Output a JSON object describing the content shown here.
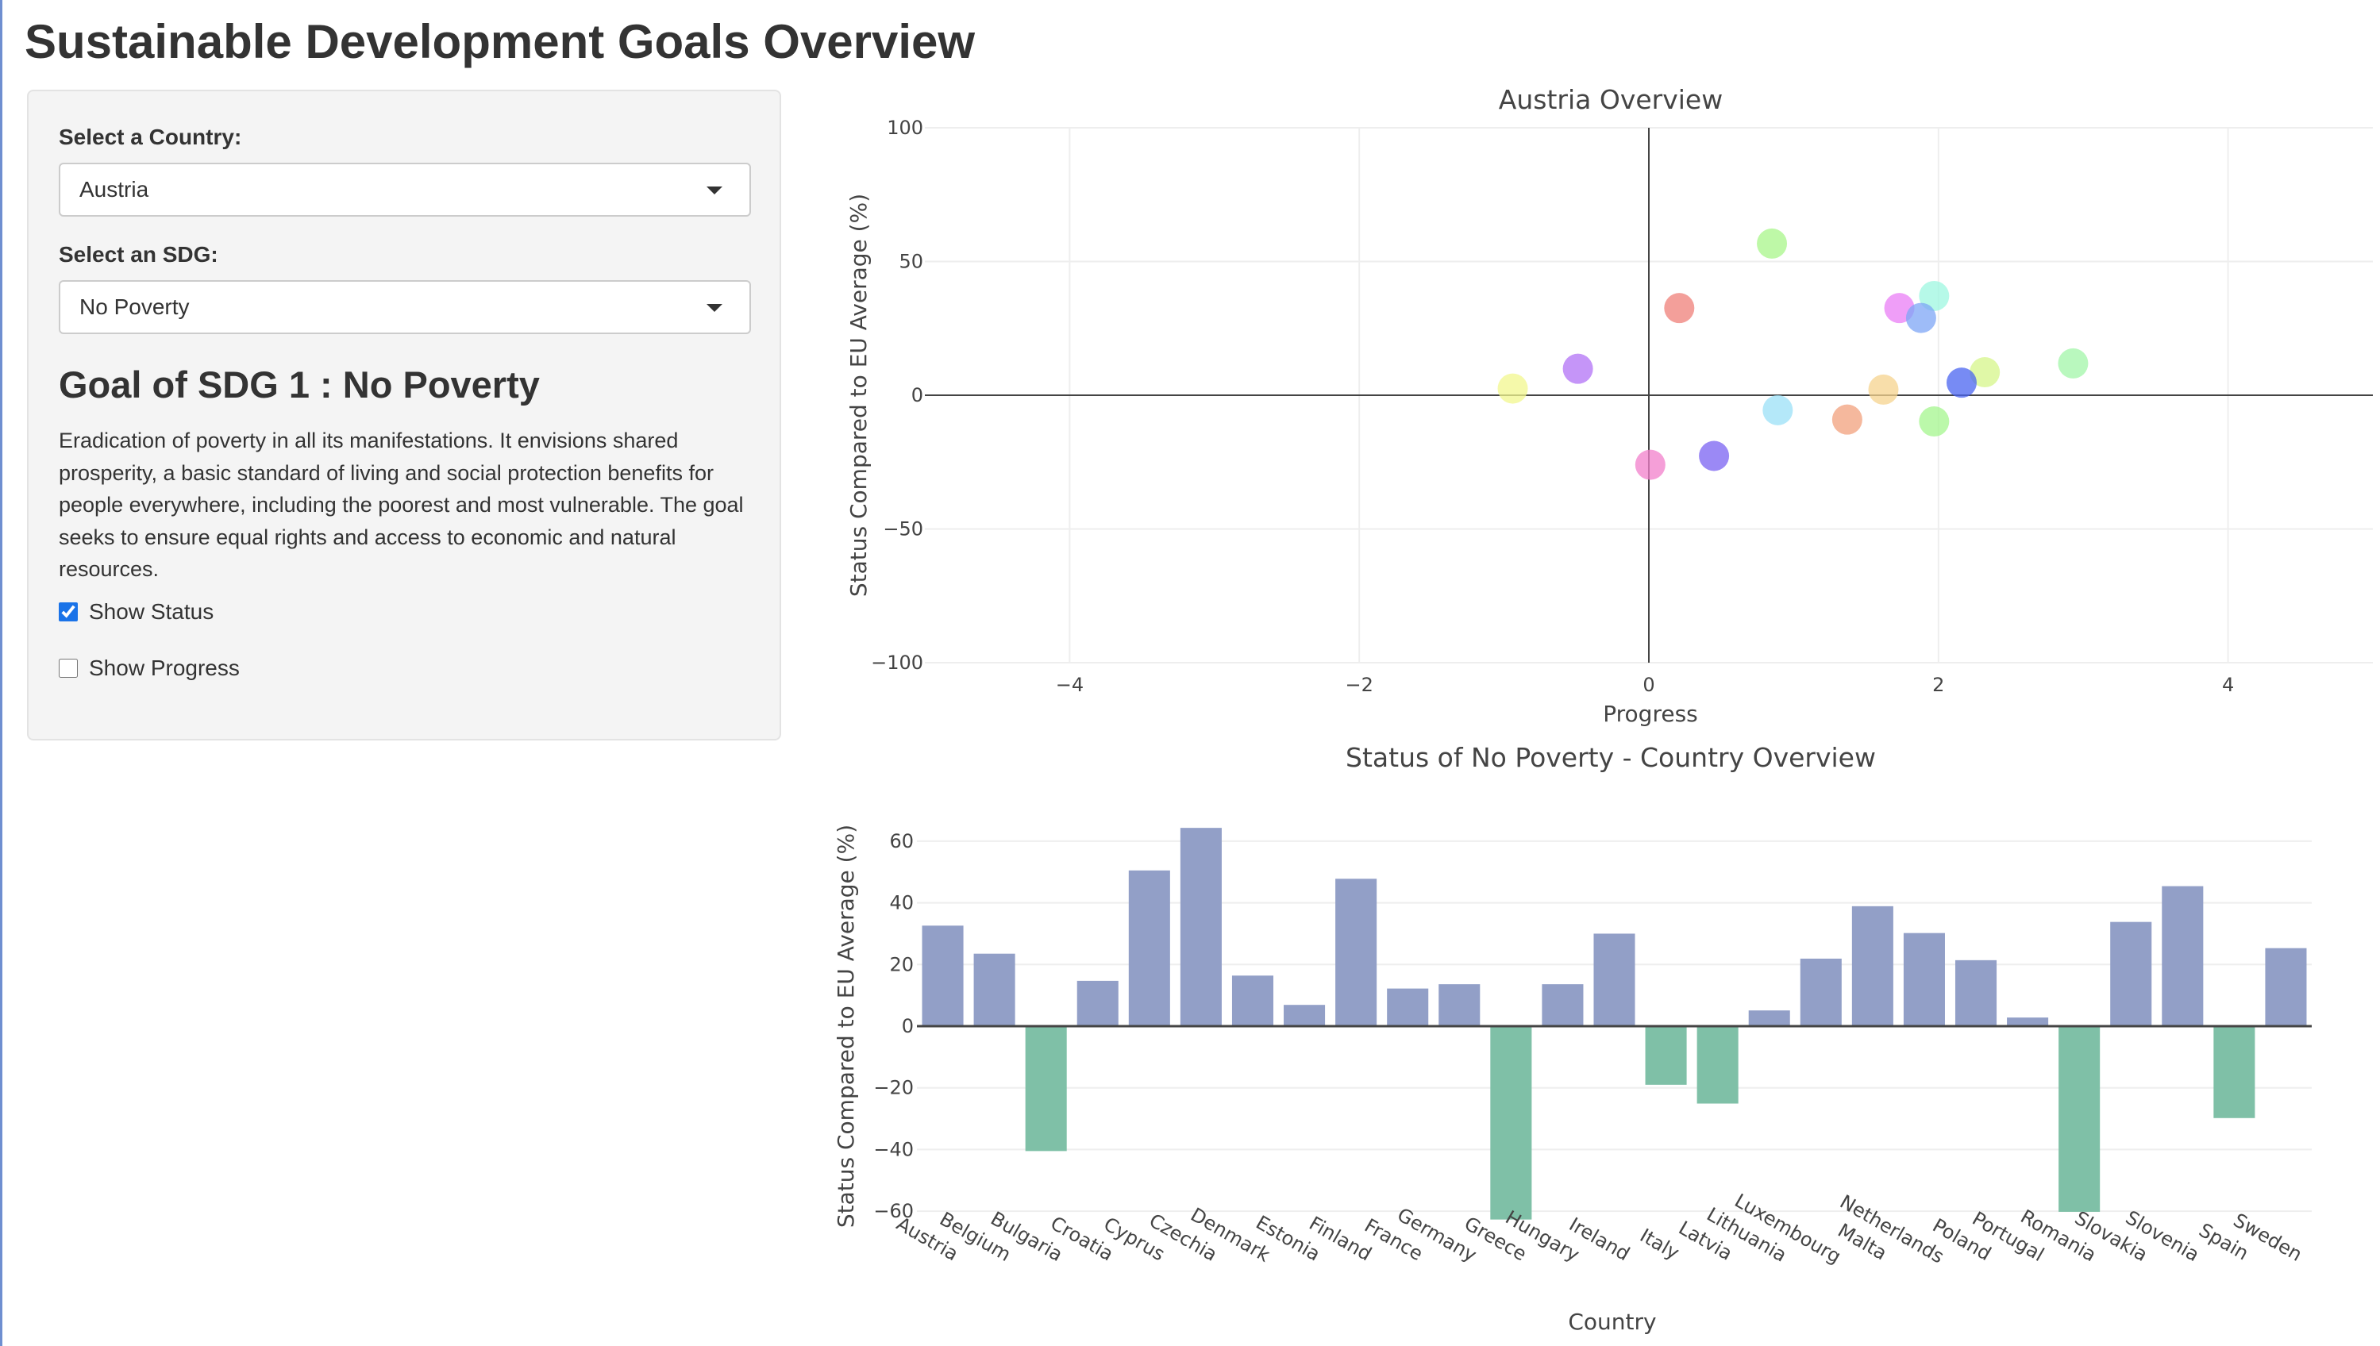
{
  "page_title": "Sustainable Development Goals Overview",
  "sidebar": {
    "country_label": "Select a Country:",
    "country_value": "Austria",
    "sdg_label": "Select an SDG:",
    "sdg_value": "No Poverty",
    "goal_heading": "Goal of SDG 1 : No Poverty",
    "goal_description": "Eradication of poverty in all its manifestations. It envisions shared prosperity, a basic standard of living and social protection benefits for people everywhere, including the poorest and most vulnerable. The goal seeks to ensure equal rights and access to economic and natural resources.",
    "show_status_label": "Show Status",
    "show_status_checked": true,
    "show_progress_label": "Show Progress",
    "show_progress_checked": false
  },
  "chart_data": [
    {
      "type": "scatter",
      "title": "Austria Overview",
      "xlabel": "Progress",
      "ylabel": "Status Compared to EU Average (%)",
      "xlim": [
        -5,
        5
      ],
      "ylim": [
        -100,
        100
      ],
      "xticks": [
        -4,
        -2,
        0,
        2,
        4
      ],
      "yticks": [
        -100,
        -50,
        0,
        50,
        100
      ],
      "grid": true,
      "points": [
        {
          "x": 0.85,
          "y": 56.7,
          "color": "#a8f58a"
        },
        {
          "x": 0.21,
          "y": 32.6,
          "color": "#ef7f78"
        },
        {
          "x": 1.73,
          "y": 32.6,
          "color": "#ea7ef5"
        },
        {
          "x": 1.97,
          "y": 37.1,
          "color": "#9ef7e0"
        },
        {
          "x": 1.88,
          "y": 28.9,
          "color": "#7ea6f5"
        },
        {
          "x": -0.49,
          "y": 9.9,
          "color": "#b272f5"
        },
        {
          "x": -0.94,
          "y": 2.5,
          "color": "#f2f78e"
        },
        {
          "x": 2.93,
          "y": 11.9,
          "color": "#a2f5a8"
        },
        {
          "x": 2.32,
          "y": 8.6,
          "color": "#d6f58a"
        },
        {
          "x": 2.16,
          "y": 4.7,
          "color": "#4a64f0"
        },
        {
          "x": 1.62,
          "y": 2.1,
          "color": "#f5d38e"
        },
        {
          "x": 0.89,
          "y": -5.6,
          "color": "#9be0f7"
        },
        {
          "x": 1.37,
          "y": -9.1,
          "color": "#f2a07c"
        },
        {
          "x": 1.97,
          "y": -9.8,
          "color": "#a4f58e"
        },
        {
          "x": 0.45,
          "y": -22.7,
          "color": "#7a62f2"
        },
        {
          "x": 0.01,
          "y": -26.0,
          "color": "#f27fcb"
        }
      ]
    },
    {
      "type": "bar",
      "title": "Status of No Poverty  - Country Overview",
      "xlabel": "Country",
      "ylabel": "Status Compared to EU Average (%)",
      "ylim": [
        -70,
        70
      ],
      "yticks": [
        -60,
        -40,
        -20,
        0,
        20,
        40,
        60
      ],
      "grid": true,
      "positive_color": "#929fc7",
      "negative_color": "#7fc0a7",
      "categories": [
        "Austria",
        "Belgium",
        "Bulgaria",
        "Croatia",
        "Cyprus",
        "Czechia",
        "Denmark",
        "Estonia",
        "Finland",
        "France",
        "Germany",
        "Greece",
        "Hungary",
        "Ireland",
        "Italy",
        "Latvia",
        "Lithuania",
        "Luxembourg",
        "Malta",
        "Netherlands",
        "Poland",
        "Portugal",
        "Romania",
        "Slovakia",
        "Slovenia",
        "Spain",
        "Sweden"
      ],
      "values": [
        32.6,
        23.5,
        -40.5,
        14.7,
        50.5,
        64.3,
        16.4,
        6.9,
        47.8,
        12.2,
        13.6,
        -62.7,
        13.6,
        30.0,
        -19.0,
        -25.1,
        5.1,
        21.9,
        38.9,
        30.2,
        21.4,
        2.8,
        -60.2,
        33.8,
        45.4,
        -29.8,
        25.3
      ]
    }
  ]
}
